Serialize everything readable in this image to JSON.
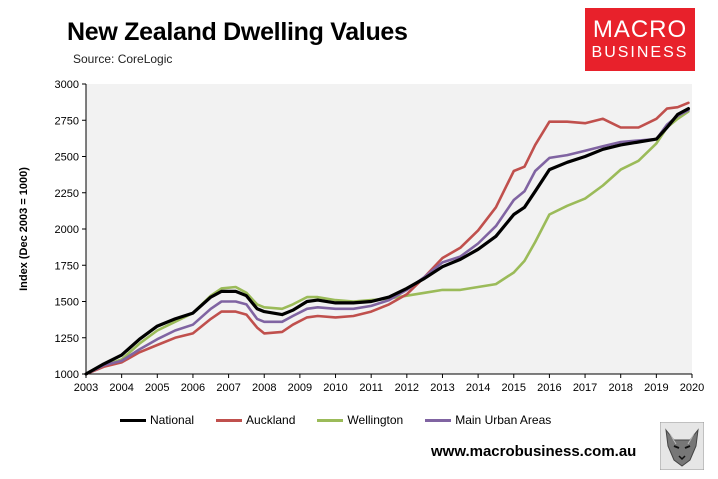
{
  "header": {
    "title": "New Zealand Dwelling Values",
    "source": "Source: CoreLogic"
  },
  "logo": {
    "line1": "MACRO",
    "line2": "BUSINESS"
  },
  "footer": {
    "website": "www.macrobusiness.com.au"
  },
  "colors": {
    "National": "#000000",
    "Auckland": "#c0504d",
    "Wellington": "#9bbb59",
    "Main Urban Areas": "#8064a2",
    "plot_background": "#f2f2f2",
    "logo": "#e8212b"
  },
  "chart_data": {
    "type": "line",
    "title": "New Zealand Dwelling Values",
    "ylabel": "Index (Dec 2003 = 1000)",
    "xlabel": "",
    "xlim": [
      2003,
      2020
    ],
    "ylim": [
      1000,
      3000
    ],
    "xticks": [
      "2003",
      "2004",
      "2005",
      "2006",
      "2007",
      "2008",
      "2009",
      "2010",
      "2011",
      "2012",
      "2013",
      "2014",
      "2015",
      "2016",
      "2017",
      "2018",
      "2019",
      "2020"
    ],
    "yticks": [
      "1000",
      "1250",
      "1500",
      "1750",
      "2000",
      "2250",
      "2500",
      "2750",
      "3000"
    ],
    "grid": false,
    "legend_position": "bottom",
    "series": [
      {
        "name": "National",
        "x": [
          2003.0,
          2003.5,
          2004.0,
          2004.5,
          2005.0,
          2005.5,
          2006.0,
          2006.5,
          2006.8,
          2007.2,
          2007.5,
          2007.8,
          2008.0,
          2008.5,
          2008.8,
          2009.2,
          2009.5,
          2010.0,
          2010.5,
          2011.0,
          2011.5,
          2012.0,
          2012.5,
          2013.0,
          2013.5,
          2014.0,
          2014.5,
          2015.0,
          2015.3,
          2015.6,
          2016.0,
          2016.5,
          2017.0,
          2017.5,
          2018.0,
          2018.5,
          2019.0,
          2019.3,
          2019.6,
          2019.9
        ],
        "values": [
          1000,
          1070,
          1130,
          1240,
          1330,
          1380,
          1420,
          1530,
          1570,
          1570,
          1540,
          1450,
          1430,
          1410,
          1440,
          1500,
          1510,
          1490,
          1490,
          1500,
          1530,
          1590,
          1660,
          1740,
          1790,
          1860,
          1950,
          2100,
          2150,
          2260,
          2410,
          2460,
          2500,
          2550,
          2580,
          2600,
          2620,
          2700,
          2790,
          2830
        ]
      },
      {
        "name": "Auckland",
        "x": [
          2003.0,
          2003.5,
          2004.0,
          2004.5,
          2005.0,
          2005.5,
          2006.0,
          2006.5,
          2006.8,
          2007.2,
          2007.5,
          2007.8,
          2008.0,
          2008.5,
          2008.8,
          2009.2,
          2009.5,
          2010.0,
          2010.5,
          2011.0,
          2011.5,
          2012.0,
          2012.5,
          2013.0,
          2013.5,
          2014.0,
          2014.5,
          2015.0,
          2015.3,
          2015.6,
          2016.0,
          2016.5,
          2017.0,
          2017.5,
          2018.0,
          2018.5,
          2019.0,
          2019.3,
          2019.6,
          2019.9
        ],
        "values": [
          1000,
          1050,
          1080,
          1150,
          1200,
          1250,
          1280,
          1380,
          1430,
          1430,
          1410,
          1320,
          1280,
          1290,
          1340,
          1390,
          1400,
          1390,
          1400,
          1430,
          1480,
          1550,
          1670,
          1800,
          1870,
          1990,
          2150,
          2400,
          2430,
          2580,
          2740,
          2740,
          2730,
          2760,
          2700,
          2700,
          2760,
          2830,
          2840,
          2870
        ]
      },
      {
        "name": "Wellington",
        "x": [
          2003.0,
          2003.5,
          2004.0,
          2004.5,
          2005.0,
          2005.5,
          2006.0,
          2006.5,
          2006.8,
          2007.2,
          2007.5,
          2007.8,
          2008.0,
          2008.5,
          2008.8,
          2009.2,
          2009.5,
          2010.0,
          2010.5,
          2011.0,
          2011.5,
          2012.0,
          2012.5,
          2013.0,
          2013.5,
          2014.0,
          2014.5,
          2015.0,
          2015.3,
          2015.6,
          2016.0,
          2016.5,
          2017.0,
          2017.5,
          2018.0,
          2018.5,
          2019.0,
          2019.3,
          2019.6,
          2019.9
        ],
        "values": [
          1000,
          1060,
          1100,
          1210,
          1300,
          1360,
          1420,
          1540,
          1590,
          1600,
          1560,
          1480,
          1460,
          1450,
          1480,
          1530,
          1530,
          1510,
          1500,
          1510,
          1520,
          1540,
          1560,
          1580,
          1580,
          1600,
          1620,
          1700,
          1780,
          1910,
          2100,
          2160,
          2210,
          2300,
          2410,
          2470,
          2590,
          2700,
          2760,
          2810
        ]
      },
      {
        "name": "Main Urban Areas",
        "x": [
          2003.0,
          2003.5,
          2004.0,
          2004.5,
          2005.0,
          2005.5,
          2006.0,
          2006.5,
          2006.8,
          2007.2,
          2007.5,
          2007.8,
          2008.0,
          2008.5,
          2008.8,
          2009.2,
          2009.5,
          2010.0,
          2010.5,
          2011.0,
          2011.5,
          2012.0,
          2012.5,
          2013.0,
          2013.5,
          2014.0,
          2014.5,
          2015.0,
          2015.3,
          2015.6,
          2016.0,
          2016.5,
          2017.0,
          2017.5,
          2018.0,
          2018.5,
          2019.0,
          2019.3,
          2019.6,
          2019.9
        ],
        "values": [
          1000,
          1060,
          1090,
          1170,
          1240,
          1300,
          1340,
          1450,
          1500,
          1500,
          1480,
          1380,
          1360,
          1360,
          1400,
          1450,
          1460,
          1450,
          1450,
          1470,
          1510,
          1580,
          1670,
          1770,
          1810,
          1900,
          2020,
          2200,
          2260,
          2400,
          2490,
          2510,
          2540,
          2570,
          2600,
          2610,
          2620,
          2720,
          2780,
          2820
        ]
      }
    ]
  }
}
